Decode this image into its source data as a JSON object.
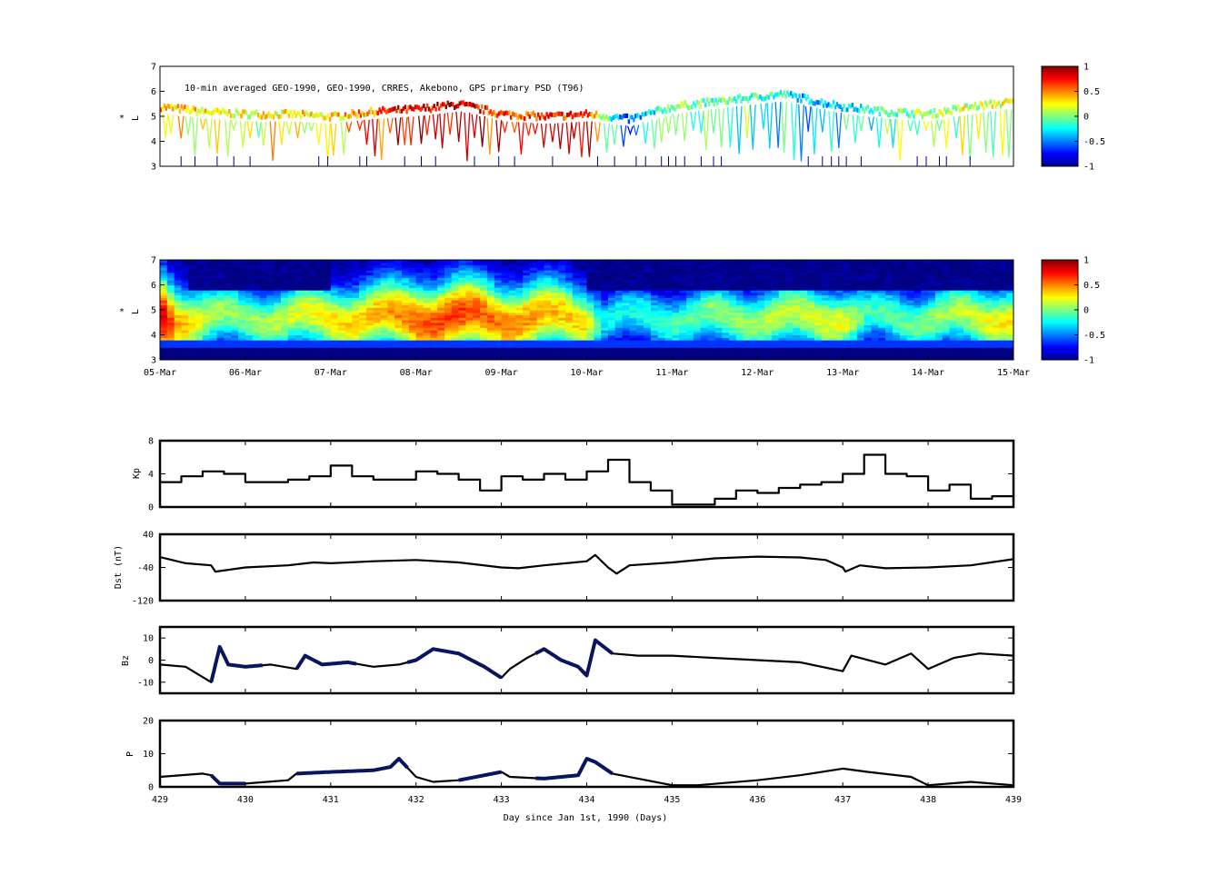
{
  "chart_data": [
    {
      "type": "scatter",
      "panel": "psd-observations",
      "title": "10-min averaged GEO-1990, GEO-1990, CRRES, Akebono, GPS  primary PSD (T96)",
      "ylabel_top": "*",
      "ylabel": "L",
      "ylim": [
        3,
        7
      ],
      "yticks": [
        "3",
        "4",
        "5",
        "6",
        "7"
      ],
      "colorbar": {
        "ticks": [
          "1",
          "0.5",
          "0",
          "-0.5",
          "-1"
        ],
        "range": [
          -1,
          1
        ],
        "colormap": "jet"
      },
      "x_range_days": [
        429,
        439
      ],
      "ridge_profile": [
        [
          429.0,
          5.4
        ],
        [
          429.5,
          5.2
        ],
        [
          430.0,
          5.1
        ],
        [
          430.5,
          5.1
        ],
        [
          431.0,
          5.0
        ],
        [
          431.5,
          5.2
        ],
        [
          432.0,
          5.3
        ],
        [
          432.5,
          5.5
        ],
        [
          433.0,
          5.1
        ],
        [
          433.5,
          5.0
        ],
        [
          434.0,
          5.1
        ],
        [
          434.5,
          4.9
        ],
        [
          435.0,
          5.4
        ],
        [
          435.5,
          5.6
        ],
        [
          436.0,
          5.8
        ],
        [
          436.3,
          5.9
        ],
        [
          436.7,
          5.6
        ],
        [
          437.0,
          5.4
        ],
        [
          437.5,
          5.2
        ],
        [
          438.0,
          5.1
        ],
        [
          438.5,
          5.4
        ],
        [
          439.0,
          5.6
        ]
      ],
      "value_profile": [
        [
          429.0,
          0.4
        ],
        [
          430.0,
          0.2
        ],
        [
          431.0,
          0.3
        ],
        [
          432.0,
          0.8
        ],
        [
          432.5,
          0.9
        ],
        [
          433.0,
          0.6
        ],
        [
          434.0,
          0.7
        ],
        [
          434.4,
          -0.6
        ],
        [
          435.0,
          0.0
        ],
        [
          436.0,
          -0.1
        ],
        [
          436.5,
          -0.4
        ],
        [
          437.0,
          -0.3
        ],
        [
          438.0,
          0.1
        ],
        [
          439.0,
          0.2
        ]
      ]
    },
    {
      "type": "heatmap",
      "panel": "psd-reanalysis",
      "ylabel_top": "*",
      "ylabel": "L",
      "ylim": [
        3,
        7
      ],
      "yticks": [
        "3",
        "4",
        "5",
        "6",
        "7"
      ],
      "xticks": [
        "05-Mar",
        "06-Mar",
        "07-Mar",
        "08-Mar",
        "09-Mar",
        "10-Mar",
        "11-Mar",
        "12-Mar",
        "13-Mar",
        "14-Mar",
        "15-Mar"
      ],
      "colorbar": {
        "ticks": [
          "1",
          "0.5",
          "0",
          "-0.5",
          "-1"
        ],
        "range": [
          -1,
          1
        ],
        "colormap": "jet"
      },
      "activity_profile": [
        [
          429.0,
          0.95
        ],
        [
          429.2,
          0.6
        ],
        [
          429.6,
          0.35
        ],
        [
          430.0,
          0.3
        ],
        [
          430.5,
          0.4
        ],
        [
          431.0,
          0.5
        ],
        [
          431.5,
          0.55
        ],
        [
          432.0,
          0.7
        ],
        [
          432.5,
          0.75
        ],
        [
          433.0,
          0.65
        ],
        [
          433.5,
          0.6
        ],
        [
          434.0,
          0.5
        ],
        [
          434.2,
          0.1
        ],
        [
          434.6,
          0.15
        ],
        [
          435.0,
          0.2
        ],
        [
          435.5,
          0.3
        ],
        [
          436.0,
          0.35
        ],
        [
          436.5,
          0.4
        ],
        [
          437.0,
          0.45
        ],
        [
          437.3,
          0.2
        ],
        [
          437.7,
          0.25
        ],
        [
          438.0,
          0.3
        ],
        [
          438.5,
          0.4
        ],
        [
          439.0,
          0.5
        ]
      ]
    },
    {
      "type": "line",
      "panel": "kp",
      "ylabel": "Kp",
      "ylim": [
        0,
        8
      ],
      "yticks": [
        "0",
        "4",
        "8"
      ],
      "x": [
        429.0,
        429.25,
        429.5,
        429.75,
        430.0,
        430.25,
        430.5,
        430.75,
        431.0,
        431.25,
        431.5,
        431.75,
        432.0,
        432.25,
        432.5,
        432.75,
        433.0,
        433.25,
        433.5,
        433.75,
        434.0,
        434.25,
        434.5,
        434.75,
        435.0,
        435.25,
        435.5,
        435.75,
        436.0,
        436.25,
        436.5,
        436.75,
        437.0,
        437.25,
        437.5,
        437.75,
        438.0,
        438.25,
        438.5,
        438.75,
        439.0
      ],
      "values": [
        3,
        3.7,
        4.3,
        4.0,
        3,
        3,
        3.3,
        3.7,
        5,
        3.7,
        3.3,
        3.3,
        4.3,
        4.0,
        3.3,
        2,
        3.7,
        3.3,
        4.0,
        3.3,
        4.3,
        5.7,
        3,
        2,
        0.3,
        0.3,
        1,
        2,
        1.7,
        2.3,
        2.7,
        3,
        4,
        6.3,
        4,
        3.7,
        2,
        2.7,
        1,
        1.3,
        1
      ]
    },
    {
      "type": "line",
      "panel": "dst",
      "ylabel": "Dst (nT)",
      "ylim": [
        -120,
        40
      ],
      "yticks": [
        "-120",
        "-40",
        "40"
      ],
      "x": [
        429.0,
        429.3,
        429.6,
        429.65,
        430.0,
        430.5,
        430.8,
        431.0,
        431.5,
        432.0,
        432.5,
        433.0,
        433.2,
        433.5,
        434.0,
        434.1,
        434.25,
        434.35,
        434.5,
        435.0,
        435.5,
        436.0,
        436.5,
        436.8,
        437.0,
        437.03,
        437.2,
        437.5,
        438.0,
        438.5,
        439.0
      ],
      "values": [
        -15,
        -30,
        -35,
        -50,
        -40,
        -35,
        -28,
        -30,
        -25,
        -22,
        -28,
        -40,
        -42,
        -35,
        -25,
        -10,
        -40,
        -55,
        -35,
        -28,
        -18,
        -14,
        -16,
        -22,
        -40,
        -50,
        -35,
        -42,
        -40,
        -35,
        -20
      ]
    },
    {
      "type": "line",
      "panel": "bz",
      "ylabel": "Bz",
      "ylim": [
        -15,
        15
      ],
      "yticks": [
        "-10",
        "0",
        "10"
      ],
      "x": [
        429.0,
        429.3,
        429.6,
        429.7,
        429.8,
        430.0,
        430.3,
        430.6,
        430.7,
        430.9,
        431.2,
        431.5,
        431.8,
        432.0,
        432.2,
        432.5,
        432.8,
        433.0,
        433.1,
        433.3,
        433.5,
        433.7,
        433.9,
        434.0,
        434.1,
        434.3,
        434.6,
        435.0,
        435.5,
        436.0,
        436.5,
        437.0,
        437.1,
        437.5,
        437.8,
        438.0,
        438.3,
        438.6,
        439.0
      ],
      "values": [
        -2,
        -3,
        -10,
        6,
        -2,
        -3,
        -2,
        -4,
        2,
        -2,
        -1,
        -3,
        -2,
        0,
        5,
        3,
        -3,
        -8,
        -4,
        1,
        5,
        0,
        -3,
        -7,
        9,
        3,
        2,
        2,
        1,
        0,
        -1,
        -5,
        2,
        -2,
        3,
        -4,
        1,
        3,
        2
      ],
      "highlight_segments_days": [
        [
          429.6,
          430.2
        ],
        [
          430.6,
          431.3
        ],
        [
          431.9,
          433.0
        ],
        [
          433.4,
          434.3
        ]
      ]
    },
    {
      "type": "line",
      "panel": "p",
      "ylabel": "P",
      "ylim": [
        0,
        20
      ],
      "yticks": [
        "0",
        "10",
        "20"
      ],
      "xlabel": "Day since Jan 1st, 1990 (Days)",
      "xticks": [
        "429",
        "430",
        "431",
        "432",
        "433",
        "434",
        "435",
        "436",
        "437",
        "438",
        "439"
      ],
      "x": [
        429.0,
        429.5,
        429.6,
        429.7,
        430.0,
        430.5,
        430.6,
        431.0,
        431.5,
        431.7,
        431.8,
        432.0,
        432.2,
        432.5,
        433.0,
        433.1,
        433.5,
        433.9,
        434.0,
        434.1,
        434.3,
        435.0,
        435.3,
        436.0,
        436.5,
        437.0,
        437.3,
        437.8,
        438.0,
        438.5,
        439.0
      ],
      "values": [
        3,
        4,
        3.5,
        1,
        1,
        2,
        4,
        4.5,
        5,
        6,
        8.5,
        3,
        1.5,
        2,
        4.5,
        3,
        2.5,
        3.5,
        8.5,
        7.5,
        4,
        0.5,
        0.5,
        2,
        3.5,
        5.5,
        4.5,
        3,
        0.5,
        1.5,
        0.5
      ],
      "highlight_segments_days": [
        [
          429.6,
          430.0
        ],
        [
          430.6,
          431.9
        ],
        [
          432.5,
          433.0
        ],
        [
          433.4,
          434.3
        ]
      ]
    }
  ]
}
